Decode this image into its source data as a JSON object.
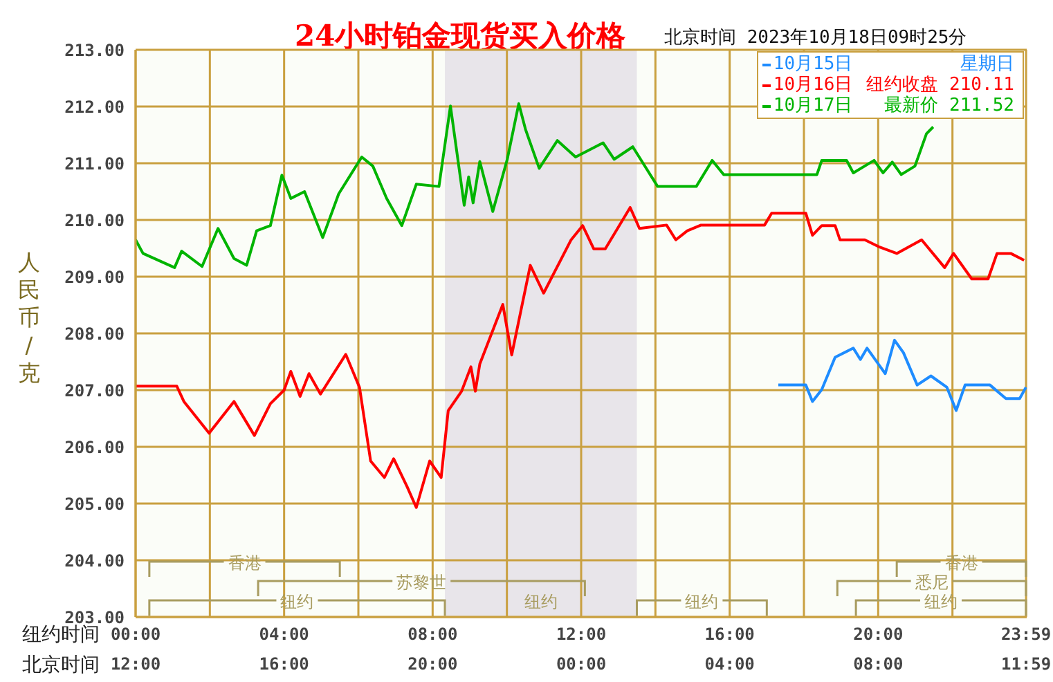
{
  "chart_data": {
    "type": "line",
    "title": "24小时铂金现货买入价格",
    "subtitle": "北京时间 2023年10月18日09时25分",
    "xlabel": "纽约时间",
    "x2label": "北京时间",
    "ylabel": "人民币/克",
    "annotations": [
      "星期日",
      "纽约收盘 210.11",
      "最新价 211.52",
      "香港",
      "苏黎世",
      "纽约",
      "纽约",
      "纽约",
      "悉尼",
      "香港"
    ],
    "series": [
      {
        "name": "10月15日",
        "color": "#1e8cff",
        "x": [
          17.31,
          18.05,
          18.23,
          18.48,
          18.84,
          19.33,
          19.52,
          19.7,
          20.19,
          20.44,
          20.68,
          21.05,
          21.42,
          21.85,
          22.1,
          22.34,
          23.01,
          23.44,
          23.81,
          23.98
        ],
        "values": [
          207.09,
          207.09,
          206.8,
          207.01,
          207.58,
          207.74,
          207.54,
          207.74,
          207.29,
          207.88,
          207.66,
          207.09,
          207.25,
          207.05,
          206.64,
          207.09,
          207.09,
          206.85,
          206.85,
          207.05
        ]
      },
      {
        "name": "10月16日",
        "color": "#ff0000",
        "x": [
          0,
          1.11,
          1.3,
          1.98,
          2.65,
          3.2,
          3.63,
          4.0,
          4.18,
          4.43,
          4.67,
          4.98,
          5.66,
          6.03,
          6.33,
          6.7,
          6.95,
          7.31,
          7.56,
          7.92,
          8.23,
          8.42,
          8.78,
          9.03,
          9.15,
          9.27,
          9.89,
          10.13,
          10.63,
          10.99,
          11.73,
          12.04,
          12.34,
          12.65,
          13.32,
          13.57,
          14.3,
          14.55,
          14.86,
          15.23,
          16.94,
          17.13,
          18.05,
          18.23,
          18.48,
          18.84,
          18.97,
          19.64,
          20.01,
          20.5,
          21.17,
          21.79,
          22.03,
          22.52,
          22.96,
          23.2,
          23.57,
          23.93
        ],
        "values": [
          207.07,
          207.07,
          206.8,
          206.24,
          206.8,
          206.2,
          206.76,
          207.0,
          207.33,
          206.89,
          207.29,
          206.93,
          207.63,
          207.05,
          205.75,
          205.46,
          205.79,
          205.3,
          204.93,
          205.75,
          205.46,
          206.64,
          206.98,
          207.41,
          206.98,
          207.46,
          208.51,
          207.62,
          209.2,
          208.71,
          209.65,
          209.9,
          209.49,
          209.49,
          210.22,
          209.85,
          209.91,
          209.65,
          209.81,
          209.91,
          209.91,
          210.12,
          210.12,
          209.73,
          209.9,
          209.9,
          209.65,
          209.65,
          209.53,
          209.41,
          209.65,
          209.16,
          209.41,
          208.96,
          208.96,
          209.41,
          209.41,
          209.29
        ]
      },
      {
        "name": "10月17日",
        "color": "#00b400",
        "x": [
          0,
          0.2,
          1.05,
          1.24,
          1.79,
          2.22,
          2.65,
          2.99,
          3.26,
          3.63,
          3.94,
          4.18,
          4.55,
          5.04,
          5.47,
          6.09,
          6.39,
          6.76,
          7.17,
          7.56,
          8.17,
          8.48,
          8.85,
          8.97,
          9.09,
          9.27,
          9.62,
          10.01,
          10.32,
          10.5,
          10.87,
          11.36,
          11.85,
          12.59,
          12.89,
          13.39,
          14.06,
          15.1,
          15.53,
          15.84,
          17.37,
          18.35,
          18.48,
          19.15,
          19.33,
          19.89,
          20.13,
          20.38,
          20.62,
          20.99,
          21.3,
          21.48
        ],
        "values": [
          209.65,
          209.41,
          209.16,
          209.45,
          209.18,
          209.85,
          209.32,
          209.2,
          209.81,
          209.9,
          210.79,
          210.38,
          210.5,
          209.69,
          210.46,
          211.11,
          210.95,
          210.38,
          209.9,
          210.63,
          210.59,
          212.01,
          210.26,
          210.76,
          210.3,
          211.03,
          210.15,
          211.07,
          212.05,
          211.6,
          210.91,
          211.4,
          211.11,
          211.36,
          211.07,
          211.29,
          210.59,
          210.59,
          211.05,
          210.8,
          210.8,
          210.8,
          211.05,
          211.05,
          210.83,
          211.05,
          210.83,
          211.02,
          210.8,
          210.95,
          211.52,
          211.64
        ]
      }
    ],
    "xlim": [
      0,
      24
    ],
    "xticks": [
      {
        "value": 0,
        "label": "00:00"
      },
      {
        "value": 2,
        "label": null
      },
      {
        "value": 4,
        "label": "04:00"
      },
      {
        "value": 6,
        "label": null
      },
      {
        "value": 8,
        "label": "08:00"
      },
      {
        "value": 10,
        "label": null
      },
      {
        "value": 12,
        "label": "12:00"
      },
      {
        "value": 14,
        "label": null
      },
      {
        "value": 16,
        "label": "16:00"
      },
      {
        "value": 18,
        "label": null
      },
      {
        "value": 20,
        "label": "20:00"
      },
      {
        "value": 22,
        "label": null
      },
      {
        "value": 23.983,
        "label": "23:59"
      }
    ],
    "x2lim": [
      "2023-10-17T12:00",
      "2023-10-18T12:00"
    ],
    "x2ticks": [
      {
        "value": "2023-10-17T12:00",
        "label": "12:00"
      },
      {
        "value": "2023-10-17T16:00",
        "label": "16:00"
      },
      {
        "value": "2023-10-17T20:00",
        "label": "20:00"
      },
      {
        "value": "2023-10-18T00:00",
        "label": "00:00"
      },
      {
        "value": "2023-10-18T04:00",
        "label": "04:00"
      },
      {
        "value": "2023-10-18T08:00",
        "label": "08:00"
      },
      {
        "value": "2023-10-18T11:59",
        "label": "11:59"
      }
    ],
    "ylim": [
      203,
      213
    ],
    "yticks": [
      {
        "value": 203,
        "label": "203.00"
      },
      {
        "value": 204,
        "label": "204.00"
      },
      {
        "value": 205,
        "label": "205.00"
      },
      {
        "value": 206,
        "label": "206.00"
      },
      {
        "value": 207,
        "label": "207.00"
      },
      {
        "value": 208,
        "label": "208.00"
      },
      {
        "value": 209,
        "label": "209.00"
      },
      {
        "value": 210,
        "label": "210.00"
      },
      {
        "value": 211,
        "label": "211.00"
      },
      {
        "value": 212,
        "label": "212.00"
      },
      {
        "value": 213,
        "label": "213.00"
      }
    ],
    "bands": [
      {
        "axis": "x",
        "from": 8.33,
        "to": 13.5,
        "label": "纽约",
        "color": "#e8e5ea"
      }
    ],
    "grid": true,
    "legend": "top right",
    "marker": "none",
    "line_style": "solid"
  }
}
